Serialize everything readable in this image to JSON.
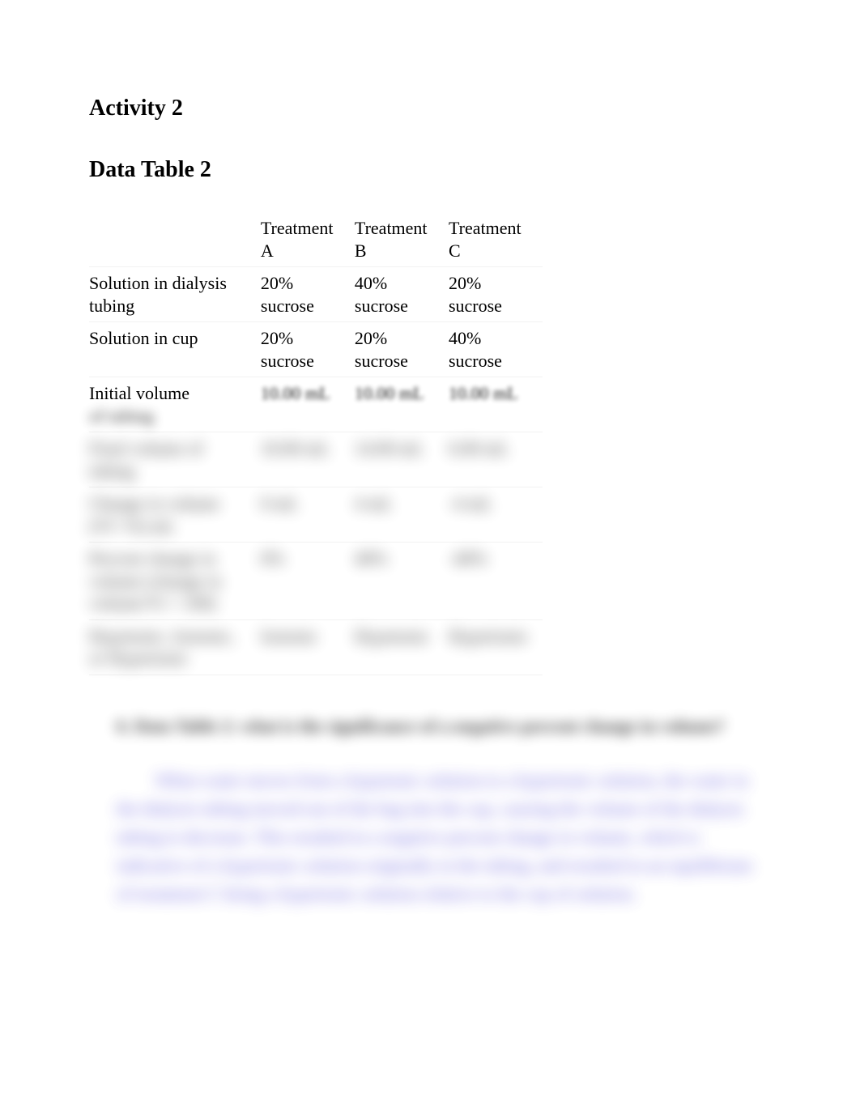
{
  "headings": {
    "activity": "Activity 2",
    "table": "Data Table 2"
  },
  "table": {
    "columns": [
      "",
      "Treatment A",
      "Treatment B",
      "Treatment C"
    ],
    "rows": [
      {
        "label": "Solution in dialysis tubing",
        "a": "20% sucrose",
        "b": "40% sucrose",
        "c": "20% sucrose",
        "blur": "none"
      },
      {
        "label": "Solution in cup",
        "a": "20% sucrose",
        "b": "20% sucrose",
        "c": "40% sucrose",
        "blur": "none"
      },
      {
        "label": "Initial volume of tubing",
        "a": "10.00 mL",
        "b": "10.00 mL",
        "c": "10.00 mL",
        "blur": "split"
      },
      {
        "label": "Final volume of tubing",
        "a": "10.00 mL",
        "b": "14.00 mL",
        "c": "6.00 mL",
        "blur": "strong"
      },
      {
        "label": "Change in volume (Vf−Vi) mL",
        "a": "0 mL",
        "b": "4 mL",
        "c": "-4 mL",
        "blur": "strong"
      },
      {
        "label": "Percent change in volume (change in volume/Vi × 100)",
        "a": "0%",
        "b": "40%",
        "c": "-40%",
        "blur": "strong"
      },
      {
        "label": "Hypotonic, Isotonic, or Hypertonic",
        "a": "Isotonic",
        "b": "Hypotonic",
        "c": "Hypertonic",
        "blur": "strong"
      }
    ]
  },
  "question": {
    "number": "6.",
    "text": "Data Table 2: what is the significance of a negative percent change in volume?",
    "answer": "When water moves from a hypotonic solution to a hypertonic solution, the water in the dialysis tubing moved out of the bag into the cup, causing the volume of the dialysis tubing to decrease. This resulted in a negative percent change in volume, which is indicative of a hypertonic solution originally in the tubing, and resulted in an equilibrium of treatment C being a hypertonic solution relative to the cup of solution."
  },
  "colors": {
    "text": "#000000",
    "answer": "#4a3fd6",
    "row_divider": "#f2f2f2",
    "background": "#ffffff"
  },
  "fontsizes": {
    "heading": 28,
    "body": 22
  }
}
